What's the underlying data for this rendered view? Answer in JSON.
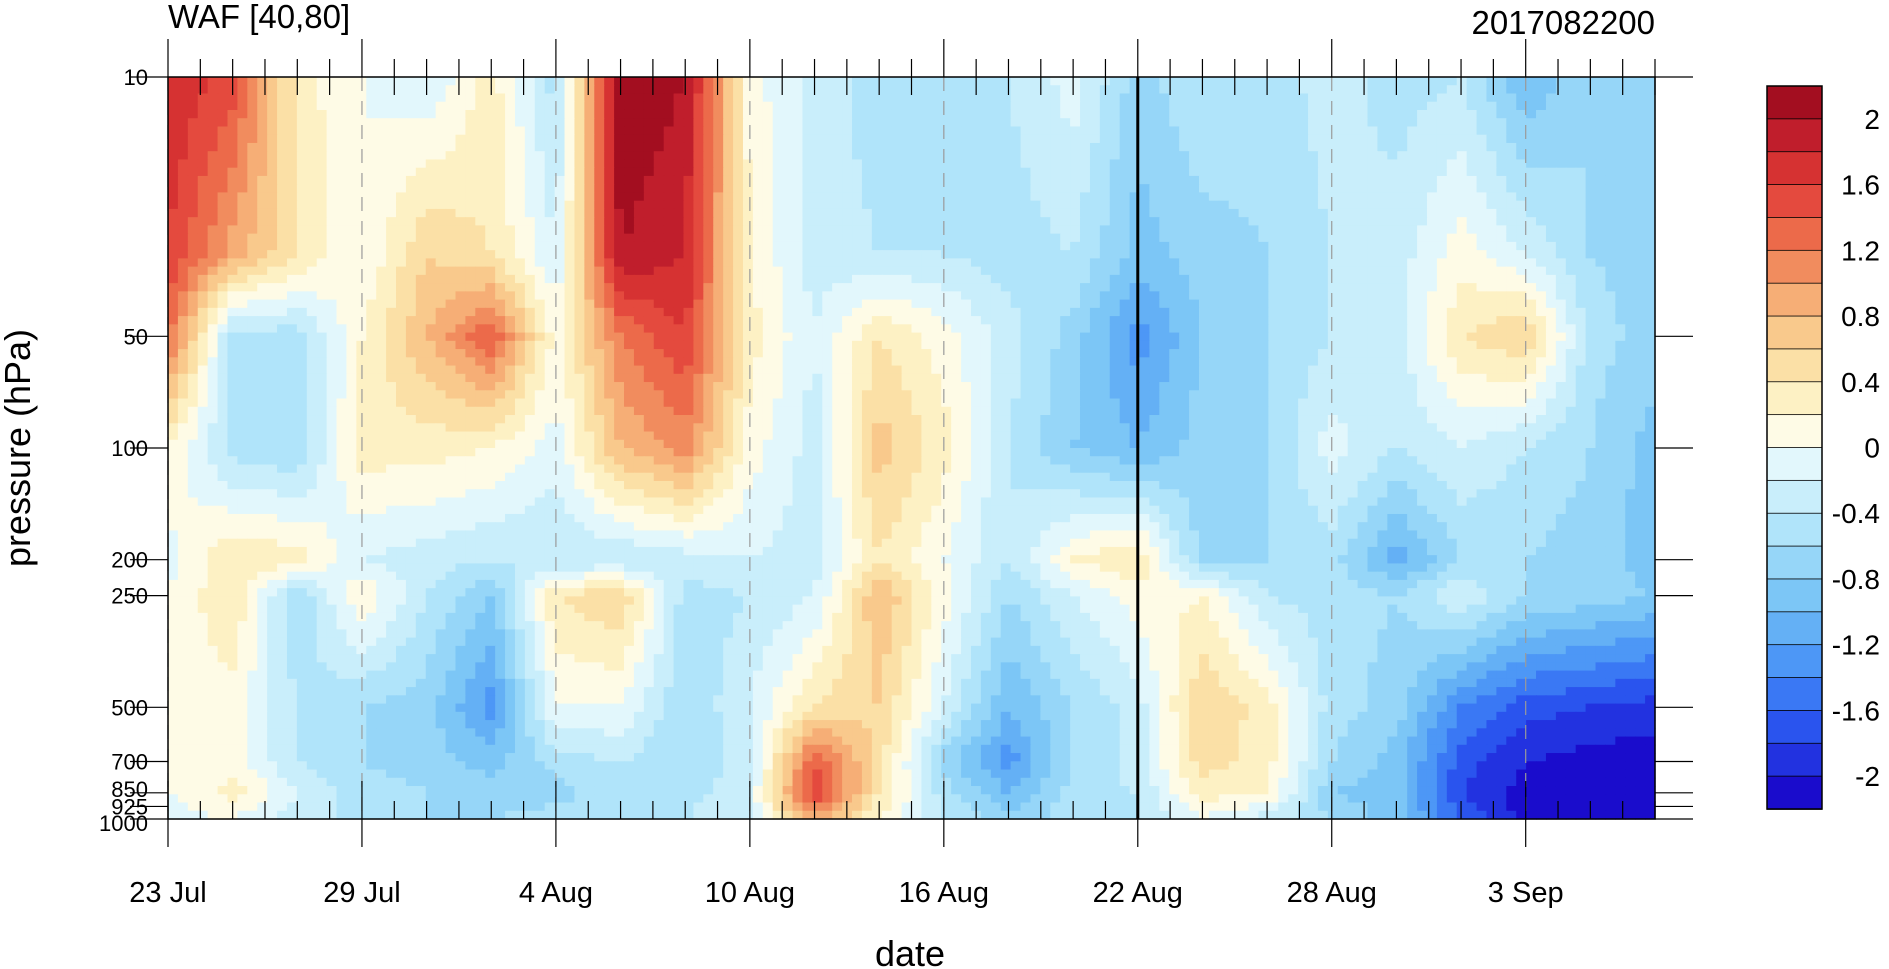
{
  "chart_data": {
    "type": "heatmap",
    "title_left": "WAF [40,80]",
    "title_right": "2017082200",
    "xlabel": "date",
    "ylabel": "pressure (hPa)",
    "x_tick_labels": [
      "23 Jul",
      "29 Jul",
      "4 Aug",
      "10 Aug",
      "16 Aug",
      "22 Aug",
      "28 Aug",
      "3 Sep"
    ],
    "x_dates": [
      "07-23",
      "07-25",
      "07-27",
      "07-29",
      "07-31",
      "08-02",
      "08-04",
      "08-06",
      "08-08",
      "08-10",
      "08-12",
      "08-14",
      "08-16",
      "08-18",
      "08-20",
      "08-22",
      "08-24",
      "08-26",
      "08-28",
      "08-30",
      "09-01",
      "09-03",
      "09-05",
      "09-07"
    ],
    "marker_date": "22 Aug",
    "y_tick_labels": [
      "10",
      "50",
      "100",
      "200",
      "250",
      "500",
      "700",
      "850",
      "925",
      "1000"
    ],
    "y_levels": [
      10,
      30,
      50,
      100,
      200,
      250,
      500,
      700,
      850,
      1000
    ],
    "y_scale": "log",
    "colorbar": {
      "min": -2.2,
      "max": 2.2,
      "step": 0.2,
      "labels": [
        "2",
        "1.6",
        "1.2",
        "0.8",
        "0.4",
        "0",
        "-0.4",
        "-0.8",
        "-1.2",
        "-1.6",
        "-2"
      ],
      "colors": [
        "#1a0ccc",
        "#2232e0",
        "#2a54ee",
        "#3a78f4",
        "#4d97f6",
        "#64b0f5",
        "#7cc6f6",
        "#96d6f8",
        "#b0e4fa",
        "#c9eefb",
        "#e2f7fc",
        "#fefbe6",
        "#fdf1c4",
        "#fbe0a6",
        "#f9c98c",
        "#f6ae76",
        "#f18c5e",
        "#ec6a4a",
        "#e44a3e",
        "#d63232",
        "#c01e2c",
        "#a30e20"
      ]
    },
    "values": [
      [
        1.8,
        1.5,
        0.3,
        0.0,
        -0.2,
        0.3,
        -0.5,
        2.2,
        2.0,
        0.1,
        -0.3,
        -0.5,
        -0.5,
        -0.4,
        -0.1,
        -0.7,
        -0.4,
        -0.5,
        -0.3,
        -0.5,
        -0.4,
        -1.0,
        -0.6,
        -0.6
      ],
      [
        1.6,
        0.9,
        0.4,
        0.0,
        0.6,
        0.4,
        -0.2,
        2.0,
        1.8,
        0.2,
        -0.3,
        -0.4,
        -0.4,
        -0.5,
        -0.4,
        -0.9,
        -0.7,
        -0.6,
        -0.4,
        -0.3,
        0.1,
        -0.2,
        -0.6,
        -0.7
      ],
      [
        1.3,
        -0.5,
        -0.5,
        0.2,
        0.8,
        1.4,
        0.1,
        1.2,
        1.6,
        0.3,
        -0.2,
        0.4,
        0.1,
        -0.3,
        -0.7,
        -1.3,
        -0.8,
        -0.6,
        -0.4,
        -0.3,
        0.4,
        0.6,
        -0.5,
        -0.7
      ],
      [
        0.2,
        -0.5,
        -0.6,
        0.3,
        0.3,
        0.2,
        -0.1,
        0.8,
        1.1,
        0.1,
        -0.3,
        0.7,
        0.3,
        -0.4,
        -0.8,
        -1.0,
        -0.7,
        -0.6,
        -0.1,
        -0.4,
        -0.2,
        -0.4,
        -0.6,
        -0.9
      ],
      [
        -0.1,
        0.4,
        0.3,
        -0.2,
        -0.3,
        -0.4,
        -0.4,
        -0.4,
        -0.3,
        -0.2,
        -0.3,
        0.4,
        0.0,
        -0.4,
        0.2,
        0.4,
        -0.7,
        -0.6,
        -0.5,
        -1.1,
        -0.6,
        -0.6,
        -0.7,
        -0.9
      ],
      [
        0.0,
        0.4,
        -0.6,
        0.2,
        -0.4,
        -0.8,
        0.4,
        0.6,
        -0.5,
        -0.4,
        -0.2,
        0.8,
        0.1,
        -0.6,
        -0.2,
        0.1,
        0.2,
        -0.4,
        -0.5,
        -0.6,
        -0.2,
        -0.6,
        -0.7,
        -0.8
      ],
      [
        0.1,
        0.1,
        -0.4,
        -0.6,
        -0.7,
        -1.3,
        0.0,
        0.0,
        -0.6,
        -0.2,
        0.4,
        0.6,
        -0.2,
        -1.0,
        -0.6,
        -0.3,
        0.6,
        0.3,
        -0.5,
        -0.7,
        -1.4,
        -1.7,
        -1.8,
        -1.9
      ],
      [
        0.0,
        0.1,
        -0.4,
        -0.6,
        -0.7,
        -0.9,
        -0.5,
        -0.4,
        -0.6,
        -0.3,
        1.4,
        0.5,
        -0.7,
        -1.3,
        -0.6,
        -0.3,
        0.5,
        0.3,
        -0.6,
        -0.9,
        -1.7,
        -2.0,
        -2.1,
        -2.1
      ],
      [
        0.0,
        0.3,
        -0.2,
        -0.5,
        -0.6,
        -0.7,
        -0.7,
        -0.4,
        -0.5,
        -0.2,
        1.6,
        0.4,
        -0.5,
        -1.0,
        -0.5,
        -0.4,
        0.3,
        0.2,
        -0.8,
        -0.9,
        -1.8,
        -2.1,
        -2.2,
        -2.2
      ],
      [
        -0.1,
        0.0,
        -0.3,
        -0.5,
        -0.6,
        -0.6,
        -0.5,
        -0.4,
        -0.4,
        -0.2,
        0.9,
        0.2,
        -0.4,
        -0.7,
        -0.5,
        -0.4,
        0.0,
        -0.3,
        -0.6,
        -0.9,
        -1.6,
        -2.1,
        -2.2,
        -2.2
      ]
    ]
  }
}
